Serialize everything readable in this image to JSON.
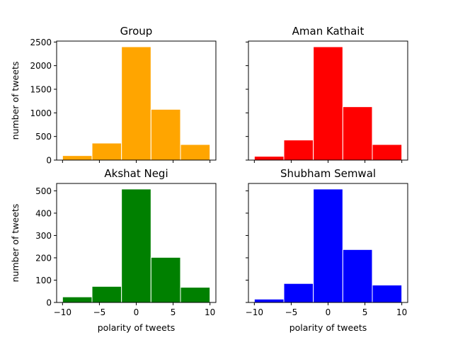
{
  "chart_data": [
    {
      "type": "bar",
      "title": "Group",
      "color": "#ffa500",
      "bin_edges": [
        -10,
        -6,
        -2,
        2,
        6,
        10
      ],
      "values": [
        95,
        360,
        2400,
        1075,
        330
      ],
      "xlim": [
        -10.8,
        10.8
      ],
      "ylim": [
        0,
        2520
      ],
      "yticks": [
        0,
        500,
        1000,
        1500,
        2000,
        2500
      ],
      "xticks": [
        -10,
        -5,
        0,
        5,
        10
      ],
      "show_xticklabels": false,
      "show_yticklabels": true,
      "xlabel": "",
      "ylabel": "number of tweets"
    },
    {
      "type": "bar",
      "title": "Aman Kathait",
      "color": "#ff0000",
      "bin_edges": [
        -10,
        -6,
        -2,
        2,
        6,
        10
      ],
      "values": [
        80,
        425,
        2400,
        1130,
        330
      ],
      "xlim": [
        -10.8,
        10.8
      ],
      "ylim": [
        0,
        2520
      ],
      "yticks": [
        0,
        500,
        1000,
        1500,
        2000,
        2500
      ],
      "xticks": [
        -10,
        -5,
        0,
        5,
        10
      ],
      "show_xticklabels": false,
      "show_yticklabels": false,
      "xlabel": "",
      "ylabel": ""
    },
    {
      "type": "bar",
      "title": "Akshat Negi",
      "color": "#008000",
      "bin_edges": [
        -10,
        -6,
        -2,
        2,
        6,
        10
      ],
      "values": [
        25,
        72,
        508,
        202,
        68
      ],
      "xlim": [
        -10.8,
        10.8
      ],
      "ylim": [
        0,
        533
      ],
      "yticks": [
        0,
        100,
        200,
        300,
        400,
        500
      ],
      "xticks": [
        -10,
        -5,
        0,
        5,
        10
      ],
      "show_xticklabels": true,
      "show_yticklabels": true,
      "xlabel": "polarity of tweets",
      "ylabel": "number of tweets"
    },
    {
      "type": "bar",
      "title": "Shubham Semwal",
      "color": "#0000ff",
      "bin_edges": [
        -10,
        -6,
        -2,
        2,
        6,
        10
      ],
      "values": [
        15,
        85,
        508,
        237,
        78
      ],
      "xlim": [
        -10.8,
        10.8
      ],
      "ylim": [
        0,
        533
      ],
      "yticks": [
        0,
        100,
        200,
        300,
        400,
        500
      ],
      "xticks": [
        -10,
        -5,
        0,
        5,
        10
      ],
      "show_xticklabels": true,
      "show_yticklabels": false,
      "xlabel": "polarity of tweets",
      "ylabel": ""
    }
  ]
}
